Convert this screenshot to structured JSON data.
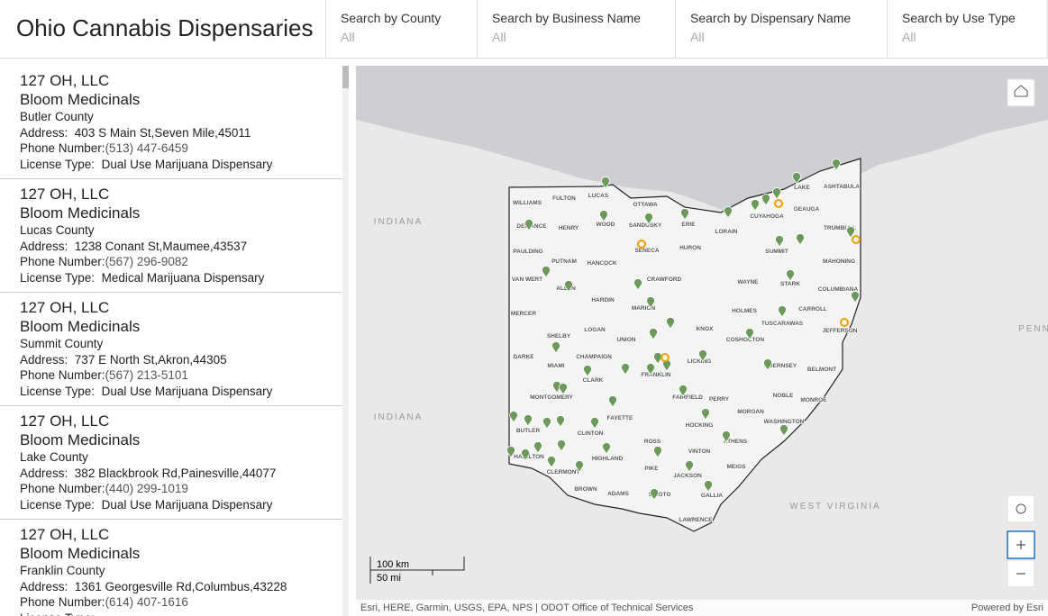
{
  "header": {
    "title": "Ohio Cannabis Dispensaries"
  },
  "filters": [
    {
      "label": "Search by County",
      "value": "All"
    },
    {
      "label": "Search by Business Name",
      "value": "All"
    },
    {
      "label": "Search by Dispensary Name",
      "value": "All"
    },
    {
      "label": "Search by Use Type",
      "value": "All"
    }
  ],
  "list": {
    "labels": {
      "address": "Address:",
      "phone": "Phone Number:",
      "license": "License Type:"
    },
    "items": [
      {
        "name": "127 OH, LLC",
        "business": "Bloom Medicinals",
        "county": "Butler County",
        "address": "403 S Main St,Seven Mile,45011",
        "phone": "(513) 447-6459",
        "license": "Dual Use Marijuana Dispensary"
      },
      {
        "name": "127 OH, LLC",
        "business": "Bloom Medicinals",
        "county": "Lucas County",
        "address": "1238 Conant St,Maumee,43537",
        "phone": "(567) 296-9082",
        "license": "Medical Marijuana Dispensary"
      },
      {
        "name": "127 OH, LLC",
        "business": "Bloom Medicinals",
        "county": "Summit County",
        "address": "737 E North St,Akron,44305",
        "phone": "(567) 213-5101",
        "license": "Dual Use Marijuana Dispensary"
      },
      {
        "name": "127 OH, LLC",
        "business": "Bloom Medicinals",
        "county": "Lake County",
        "address": "382 Blackbrook Rd,Painesville,44077",
        "phone": "(440) 299-1019",
        "license": "Dual Use Marijuana Dispensary"
      },
      {
        "name": "127 OH, LLC",
        "business": "Bloom Medicinals",
        "county": "Franklin County",
        "address": "1361 Georgesville Rd,Columbus,43228",
        "phone": "(614) 407-1616",
        "license": ""
      }
    ]
  },
  "map": {
    "states": [
      "INDIANA",
      "INDIANA",
      "WEST VIRGINIA",
      "PENN"
    ],
    "counties": [
      "FULTON",
      "LUCAS",
      "WILLIAMS",
      "OTTAWA",
      "DEFIANCE",
      "HENRY",
      "WOOD",
      "SANDUSKY",
      "ERIE",
      "LORAIN",
      "CUYAHOGA",
      "GEAUGA",
      "LAKE",
      "ASHTABULA",
      "TRUMBULL",
      "PAULDING",
      "PUTNAM",
      "HANCOCK",
      "SENECA",
      "HURON",
      "SUMMIT",
      "MAHONING",
      "VAN WERT",
      "ALLEN",
      "CRAWFORD",
      "WAYNE",
      "STARK",
      "COLUMBIANA",
      "HARDIN",
      "MARION",
      "HOLMES",
      "CARROLL",
      "MERCER",
      "LOGAN",
      "UNION",
      "KNOX",
      "COSHOCTON",
      "TUSCARAWAS",
      "JEFFERSON",
      "SHELBY",
      "DARKE",
      "CHAMPAIGN",
      "LICKING",
      "GUERNSEY",
      "BELMONT",
      "MIAMI",
      "CLARK",
      "FRANKLIN",
      "MONTGOMERY",
      "FAIRFIELD",
      "PERRY",
      "NOBLE",
      "MONROE",
      "MORGAN",
      "FAYETTE",
      "HOCKING",
      "WASHINGTON",
      "BUTLER",
      "CLINTON",
      "ATHENS",
      "ROSS",
      "VINTON",
      "HAMILTON",
      "HIGHLAND",
      "MEIGS",
      "CLERMONT",
      "PIKE",
      "JACKSON",
      "BROWN",
      "ADAMS",
      "SCIOTO",
      "GALLIA",
      "LAWRENCE"
    ],
    "scale": {
      "km": "100 km",
      "mi": "50 mi"
    },
    "attribution": "Esri, HERE, Garmin, USGS, EPA, NPS | ODOT Office of Technical Services",
    "powered": "Powered by Esri"
  }
}
